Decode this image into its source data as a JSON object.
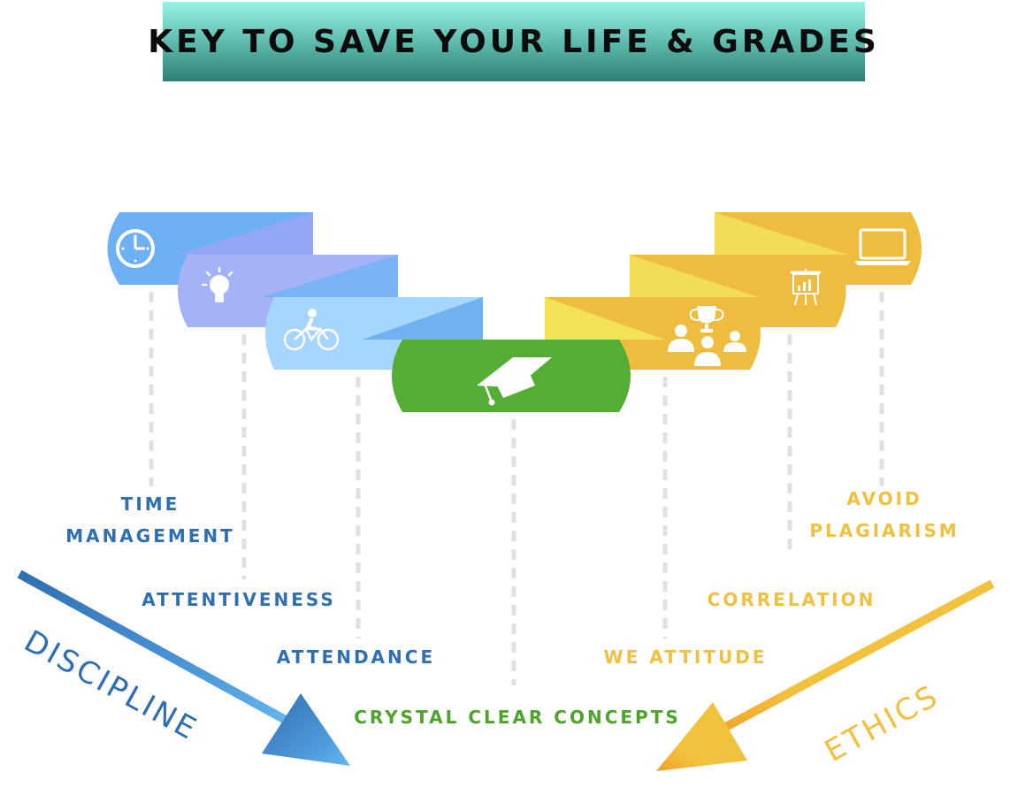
{
  "title": "KEY TO SAVE YOUR LIFE & GRADES",
  "left_group": {
    "name": "DISCIPLINE",
    "color": "#2f6fb1",
    "items": [
      {
        "line1": "TIME",
        "line2": "MANAGEMENT",
        "icon": "clock-icon"
      },
      {
        "line1": "ATTENTIVENESS",
        "icon": "lightbulb-icon"
      },
      {
        "line1": "ATTENDANCE",
        "icon": "bicycle-icon"
      }
    ]
  },
  "center": {
    "label": "CRYSTAL CLEAR CONCEPTS",
    "icon": "graduation-cap-icon",
    "color": "#54ae35"
  },
  "right_group": {
    "name": "ETHICS",
    "color": "#f2c03f",
    "items": [
      {
        "line1": "AVOID",
        "line2": "PLAGIARISM",
        "icon": "laptop-icon"
      },
      {
        "line1": "CORRELATION",
        "icon": "presentation-board-icon"
      },
      {
        "line1": "WE ATTITUDE",
        "icon": "team-trophy-icon"
      }
    ]
  }
}
